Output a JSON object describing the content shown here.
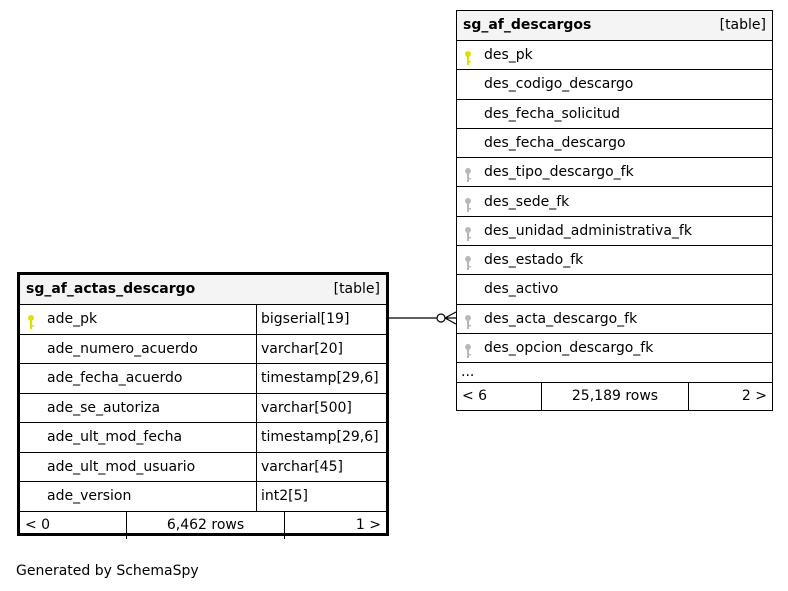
{
  "tables": [
    {
      "id": "left",
      "name": "sg_af_actas_descargo",
      "kind": "[table]",
      "columns": [
        {
          "name": "ade_pk",
          "type": "bigserial[19]",
          "key": "primary"
        },
        {
          "name": "ade_numero_acuerdo",
          "type": "varchar[20]",
          "key": ""
        },
        {
          "name": "ade_fecha_acuerdo",
          "type": "timestamp[29,6]",
          "key": ""
        },
        {
          "name": "ade_se_autoriza",
          "type": "varchar[500]",
          "key": ""
        },
        {
          "name": "ade_ult_mod_fecha",
          "type": "timestamp[29,6]",
          "key": ""
        },
        {
          "name": "ade_ult_mod_usuario",
          "type": "varchar[45]",
          "key": ""
        },
        {
          "name": "ade_version",
          "type": "int2[5]",
          "key": ""
        }
      ],
      "footer": {
        "parents": "< 0",
        "rows": "6,462 rows",
        "children": "1 >"
      }
    },
    {
      "id": "right",
      "name": "sg_af_descargos",
      "kind": "[table]",
      "columns": [
        {
          "name": "des_pk",
          "key": "primary"
        },
        {
          "name": "des_codigo_descargo",
          "key": ""
        },
        {
          "name": "des_fecha_solicitud",
          "key": ""
        },
        {
          "name": "des_fecha_descargo",
          "key": ""
        },
        {
          "name": "des_tipo_descargo_fk",
          "key": "foreign"
        },
        {
          "name": "des_sede_fk",
          "key": "foreign"
        },
        {
          "name": "des_unidad_administrativa_fk",
          "key": "foreign"
        },
        {
          "name": "des_estado_fk",
          "key": "foreign"
        },
        {
          "name": "des_activo",
          "key": ""
        },
        {
          "name": "des_acta_descargo_fk",
          "key": "foreign"
        },
        {
          "name": "des_opcion_descargo_fk",
          "key": "foreign"
        }
      ],
      "more": "...",
      "footer": {
        "parents": "< 6",
        "rows": "25,189 rows",
        "children": "2 >"
      }
    }
  ],
  "colors": {
    "primary_key": "#e0e000",
    "foreign_key": "#b8b8b8",
    "header_bg": "#f4f4f4"
  },
  "generated_by": "Generated by SchemaSpy"
}
